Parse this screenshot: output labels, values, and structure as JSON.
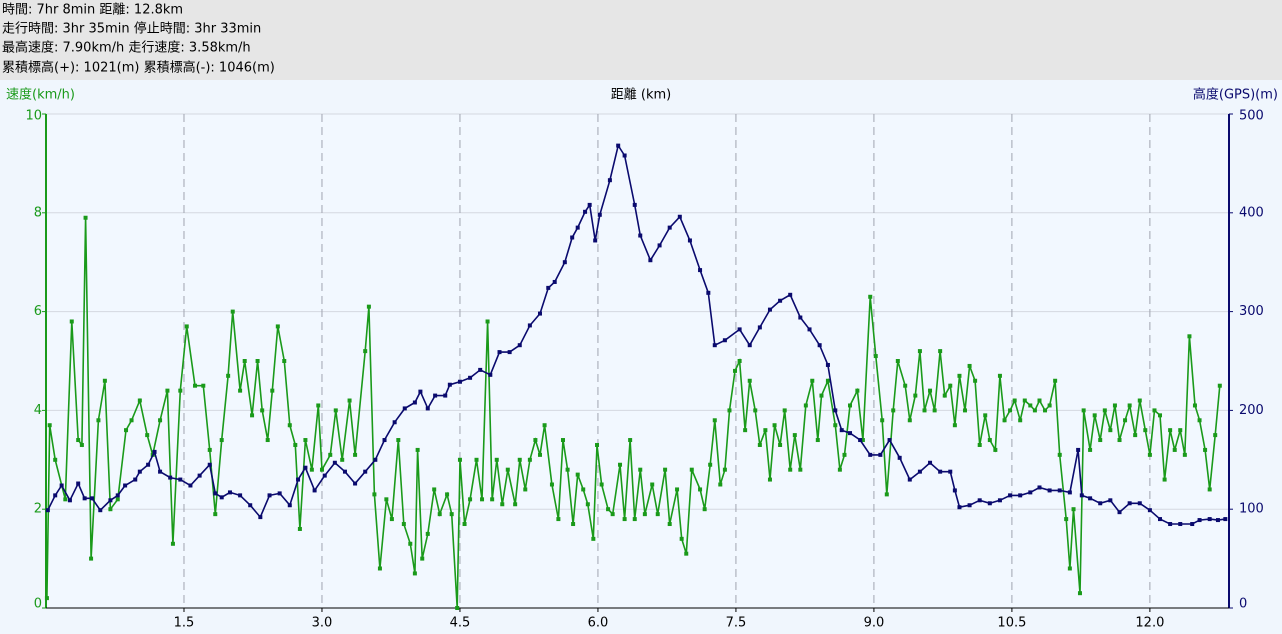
{
  "header": {
    "lines": [
      "時間: 7hr 8min 距離: 12.8km",
      "走行時間: 3hr 35min 停止時間: 3hr 33min",
      "最高速度: 7.90km/h 走行速度: 3.58km/h",
      "累積標高(+): 1021(m) 累積標高(-): 1046(m)"
    ]
  },
  "chart_data": {
    "type": "line",
    "xlabel": "距離 (km)",
    "ylabel": "速度(km/h)",
    "y2label": "高度(GPS)(m)",
    "xlim": [
      0,
      12.86
    ],
    "ylim": [
      0,
      10
    ],
    "y2lim": [
      0,
      500
    ],
    "xticks": [
      1.5,
      {
        "value": 3,
        "label": "3.0"
      },
      4.5,
      {
        "value": 6,
        "label": "6.0"
      },
      7.5,
      {
        "value": 9,
        "label": "9.0"
      },
      10.5,
      {
        "value": 12,
        "label": "12.0"
      }
    ],
    "yticks": [
      0,
      2,
      4,
      6,
      8,
      10
    ],
    "y2ticks": [
      0,
      100,
      200,
      300,
      400,
      500
    ],
    "grid": true,
    "series": [
      {
        "color": "#1a9a1a",
        "axis": "y",
        "x": [
          0.01,
          0.04,
          0.1,
          0.21,
          0.28,
          0.35,
          0.39,
          0.43,
          0.49,
          0.57,
          0.64,
          0.7,
          0.78,
          0.87,
          0.93,
          1.02,
          1.1,
          1.16,
          1.24,
          1.32,
          1.38,
          1.46,
          1.53,
          1.62,
          1.71,
          1.78,
          1.84,
          1.91,
          1.98,
          2.03,
          2.11,
          2.16,
          2.24,
          2.3,
          2.35,
          2.41,
          2.46,
          2.52,
          2.59,
          2.65,
          2.71,
          2.76,
          2.82,
          2.89,
          2.96,
          3.0,
          3.09,
          3.15,
          3.22,
          3.3,
          3.36,
          3.47,
          3.51,
          3.57,
          3.63,
          3.7,
          3.76,
          3.83,
          3.89,
          3.96,
          4.01,
          4.04,
          4.09,
          4.15,
          4.22,
          4.28,
          4.36,
          4.41,
          4.47,
          4.5,
          4.55,
          4.61,
          4.68,
          4.74,
          4.8,
          4.85,
          4.9,
          4.96,
          5.02,
          5.1,
          5.15,
          5.21,
          5.26,
          5.32,
          5.37,
          5.42,
          5.5,
          5.57,
          5.62,
          5.67,
          5.73,
          5.78,
          5.84,
          5.89,
          5.95,
          5.99,
          6.04,
          6.11,
          6.16,
          6.24,
          6.29,
          6.35,
          6.4,
          6.46,
          6.51,
          6.59,
          6.65,
          6.73,
          6.78,
          6.86,
          6.91,
          6.96,
          7.02,
          7.11,
          7.16,
          7.22,
          7.27,
          7.33,
          7.38,
          7.43,
          7.49,
          7.54,
          7.6,
          7.65,
          7.71,
          7.76,
          7.82,
          7.87,
          7.92,
          7.98,
          8.03,
          8.09,
          8.14,
          8.2,
          8.26,
          8.33,
          8.39,
          8.43,
          8.5,
          8.58,
          8.63,
          8.68,
          8.74,
          8.82,
          8.88,
          8.96,
          9.02,
          9.09,
          9.14,
          9.21,
          9.26,
          9.34,
          9.39,
          9.45,
          9.5,
          9.55,
          9.61,
          9.66,
          9.72,
          9.77,
          9.83,
          9.88,
          9.93,
          9.99,
          10.04,
          10.1,
          10.15,
          10.21,
          10.26,
          10.32,
          10.37,
          10.42,
          10.48,
          10.53,
          10.59,
          10.64,
          10.7,
          10.75,
          10.8,
          10.86,
          10.91,
          10.97,
          11.02,
          11.09,
          11.13,
          11.17,
          11.24,
          11.28,
          11.35,
          11.4,
          11.46,
          11.51,
          11.57,
          11.62,
          11.67,
          11.73,
          11.78,
          11.84,
          11.89,
          11.95,
          12.0,
          12.05,
          12.11,
          12.16,
          12.22,
          12.27,
          12.33,
          12.38,
          12.43,
          12.49,
          12.54,
          12.6,
          12.65,
          12.71,
          12.76
        ],
        "values": [
          0.2,
          3.7,
          3.0,
          2.2,
          5.8,
          3.4,
          3.3,
          7.9,
          1.0,
          3.8,
          4.6,
          2.0,
          2.2,
          3.6,
          3.8,
          4.2,
          3.5,
          3.1,
          3.8,
          4.4,
          1.3,
          4.4,
          5.7,
          4.5,
          4.5,
          3.2,
          1.9,
          3.4,
          4.7,
          6.0,
          4.4,
          5.0,
          3.9,
          5.0,
          4.0,
          3.4,
          4.4,
          5.7,
          5.0,
          3.7,
          3.3,
          1.6,
          3.4,
          2.8,
          4.1,
          2.8,
          3.1,
          4.0,
          3.0,
          4.2,
          3.1,
          5.2,
          6.1,
          2.3,
          0.8,
          2.2,
          1.8,
          3.4,
          1.7,
          1.3,
          0.7,
          3.2,
          1.0,
          1.5,
          2.4,
          1.9,
          2.3,
          1.9,
          0,
          3.0,
          1.7,
          2.2,
          3.0,
          2.2,
          5.8,
          2.2,
          3.0,
          2.1,
          2.8,
          2.1,
          3.0,
          2.4,
          3.0,
          3.4,
          3.1,
          3.7,
          2.5,
          1.8,
          3.4,
          2.8,
          1.7,
          2.7,
          2.4,
          2.1,
          1.4,
          3.3,
          2.5,
          2.0,
          1.9,
          2.9,
          1.8,
          3.4,
          1.8,
          2.8,
          1.9,
          2.5,
          1.9,
          2.8,
          1.7,
          2.4,
          1.4,
          1.1,
          2.8,
          2.4,
          2.0,
          2.9,
          3.8,
          2.5,
          2.8,
          4.0,
          4.8,
          5.0,
          3.6,
          4.6,
          4.0,
          3.3,
          3.6,
          2.6,
          3.7,
          3.3,
          4.0,
          2.8,
          3.5,
          2.8,
          4.1,
          4.6,
          3.4,
          4.3,
          4.6,
          3.7,
          2.8,
          3.1,
          4.1,
          4.4,
          3.4,
          6.3,
          5.1,
          3.8,
          2.3,
          4.0,
          5.0,
          4.5,
          3.8,
          4.3,
          5.2,
          4.0,
          4.4,
          4.0,
          5.2,
          4.3,
          4.5,
          3.7,
          4.7,
          4.0,
          4.9,
          4.6,
          3.3,
          3.9,
          3.4,
          3.2,
          4.7,
          3.8,
          4.0,
          4.2,
          3.8,
          4.2,
          4.1,
          4.0,
          4.2,
          4.0,
          4.1,
          4.6,
          3.1,
          1.8,
          0.8,
          2.0,
          0.3,
          4.0,
          3.2,
          3.9,
          3.4,
          4.0,
          3.6,
          4.1,
          3.4,
          3.8,
          4.1,
          3.5,
          4.2,
          3.6,
          3.1,
          4.0,
          3.9,
          2.6,
          3.6,
          3.2,
          3.6,
          3.1,
          5.5,
          4.1,
          3.8,
          3.2,
          2.4,
          3.5,
          4.5
        ]
      },
      {
        "color": "#0a0a6e",
        "axis": "y2",
        "x": [
          0.02,
          0.1,
          0.17,
          0.26,
          0.35,
          0.42,
          0.5,
          0.59,
          0.7,
          0.78,
          0.86,
          0.97,
          1.02,
          1.11,
          1.18,
          1.24,
          1.35,
          1.46,
          1.57,
          1.67,
          1.78,
          1.84,
          1.91,
          2.0,
          2.11,
          2.22,
          2.33,
          2.43,
          2.54,
          2.65,
          2.74,
          2.82,
          2.92,
          3.03,
          3.14,
          3.25,
          3.36,
          3.47,
          3.58,
          3.68,
          3.79,
          3.9,
          4.01,
          4.07,
          4.15,
          4.23,
          4.34,
          4.39,
          4.5,
          4.61,
          4.72,
          4.83,
          4.93,
          5.04,
          5.15,
          5.26,
          5.37,
          5.46,
          5.53,
          5.64,
          5.72,
          5.78,
          5.86,
          5.91,
          5.97,
          6.02,
          6.13,
          6.22,
          6.29,
          6.4,
          6.46,
          6.57,
          6.67,
          6.78,
          6.89,
          7.0,
          7.11,
          7.2,
          7.27,
          7.38,
          7.54,
          7.65,
          7.76,
          7.87,
          7.98,
          8.09,
          8.2,
          8.3,
          8.41,
          8.5,
          8.58,
          8.65,
          8.74,
          8.85,
          8.96,
          9.07,
          9.17,
          9.28,
          9.39,
          9.5,
          9.61,
          9.72,
          9.83,
          9.88,
          9.93,
          10.04,
          10.15,
          10.26,
          10.37,
          10.48,
          10.59,
          10.7,
          10.8,
          10.91,
          11.02,
          11.13,
          11.22,
          11.26,
          11.35,
          11.46,
          11.57,
          11.67,
          11.78,
          11.89,
          12.0,
          12.11,
          12.22,
          12.33,
          12.46,
          12.54,
          12.65,
          12.74,
          12.82
        ],
        "values": [
          99,
          114,
          124,
          109,
          126,
          111,
          111,
          99,
          109,
          114,
          124,
          130,
          138,
          145,
          158,
          138,
          132,
          130,
          124,
          134,
          145,
          116,
          112,
          117,
          114,
          104,
          92,
          114,
          116,
          104,
          130,
          142,
          119,
          134,
          147,
          138,
          126,
          138,
          150,
          170,
          188,
          202,
          208,
          219,
          202,
          215,
          215,
          226,
          229,
          233,
          241,
          236,
          259,
          259,
          266,
          286,
          298,
          324,
          330,
          350,
          375,
          385,
          401,
          408,
          372,
          398,
          433,
          468,
          458,
          408,
          377,
          352,
          367,
          385,
          396,
          372,
          342,
          319,
          266,
          271,
          282,
          266,
          284,
          302,
          311,
          317,
          294,
          282,
          266,
          246,
          200,
          180,
          177,
          170,
          155,
          155,
          170,
          152,
          130,
          138,
          147,
          138,
          138,
          119,
          102,
          104,
          109,
          106,
          109,
          114,
          114,
          117,
          122,
          119,
          119,
          117,
          160,
          114,
          111,
          106,
          109,
          97,
          106,
          106,
          99,
          90,
          85,
          85,
          85,
          89,
          90,
          89,
          90
        ]
      }
    ]
  }
}
